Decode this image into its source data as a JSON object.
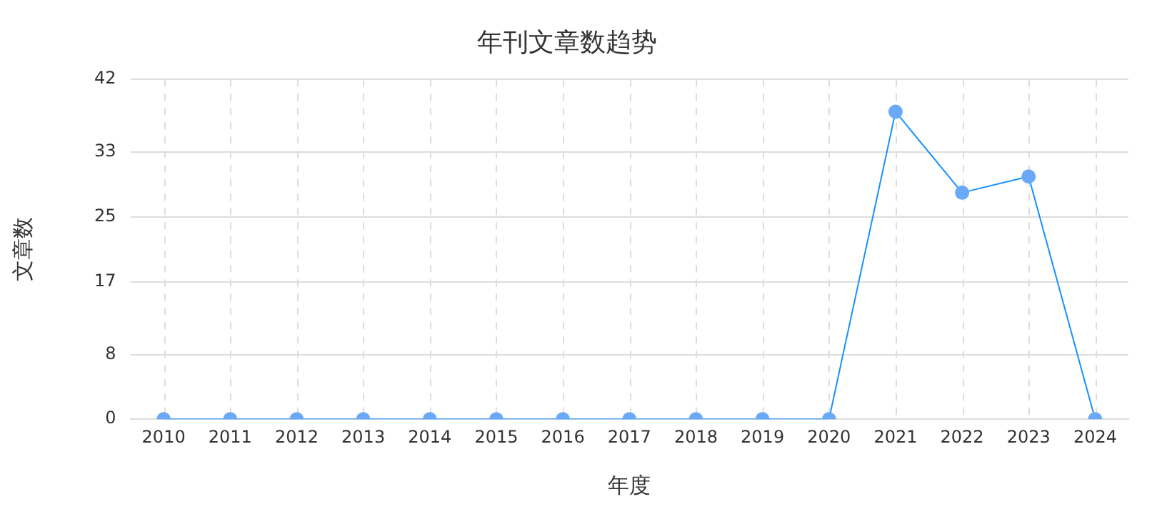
{
  "chart_data": {
    "type": "line",
    "title": "年刊文章数趋势",
    "xlabel": "年度",
    "ylabel": "文章数",
    "categories": [
      "2010",
      "2011",
      "2012",
      "2013",
      "2014",
      "2015",
      "2016",
      "2017",
      "2018",
      "2019",
      "2020",
      "2021",
      "2022",
      "2023",
      "2024"
    ],
    "series": [
      {
        "color": "#1890ff",
        "values": [
          0,
          0,
          0,
          0,
          0,
          0,
          0,
          0,
          0,
          0,
          0,
          38,
          28,
          30,
          0
        ]
      }
    ],
    "ylim": [
      0,
      42
    ],
    "yticks": [
      0,
      8,
      17,
      25,
      33,
      42
    ],
    "grid": true,
    "legend": false,
    "marker": "circle",
    "line_style": "solid"
  }
}
